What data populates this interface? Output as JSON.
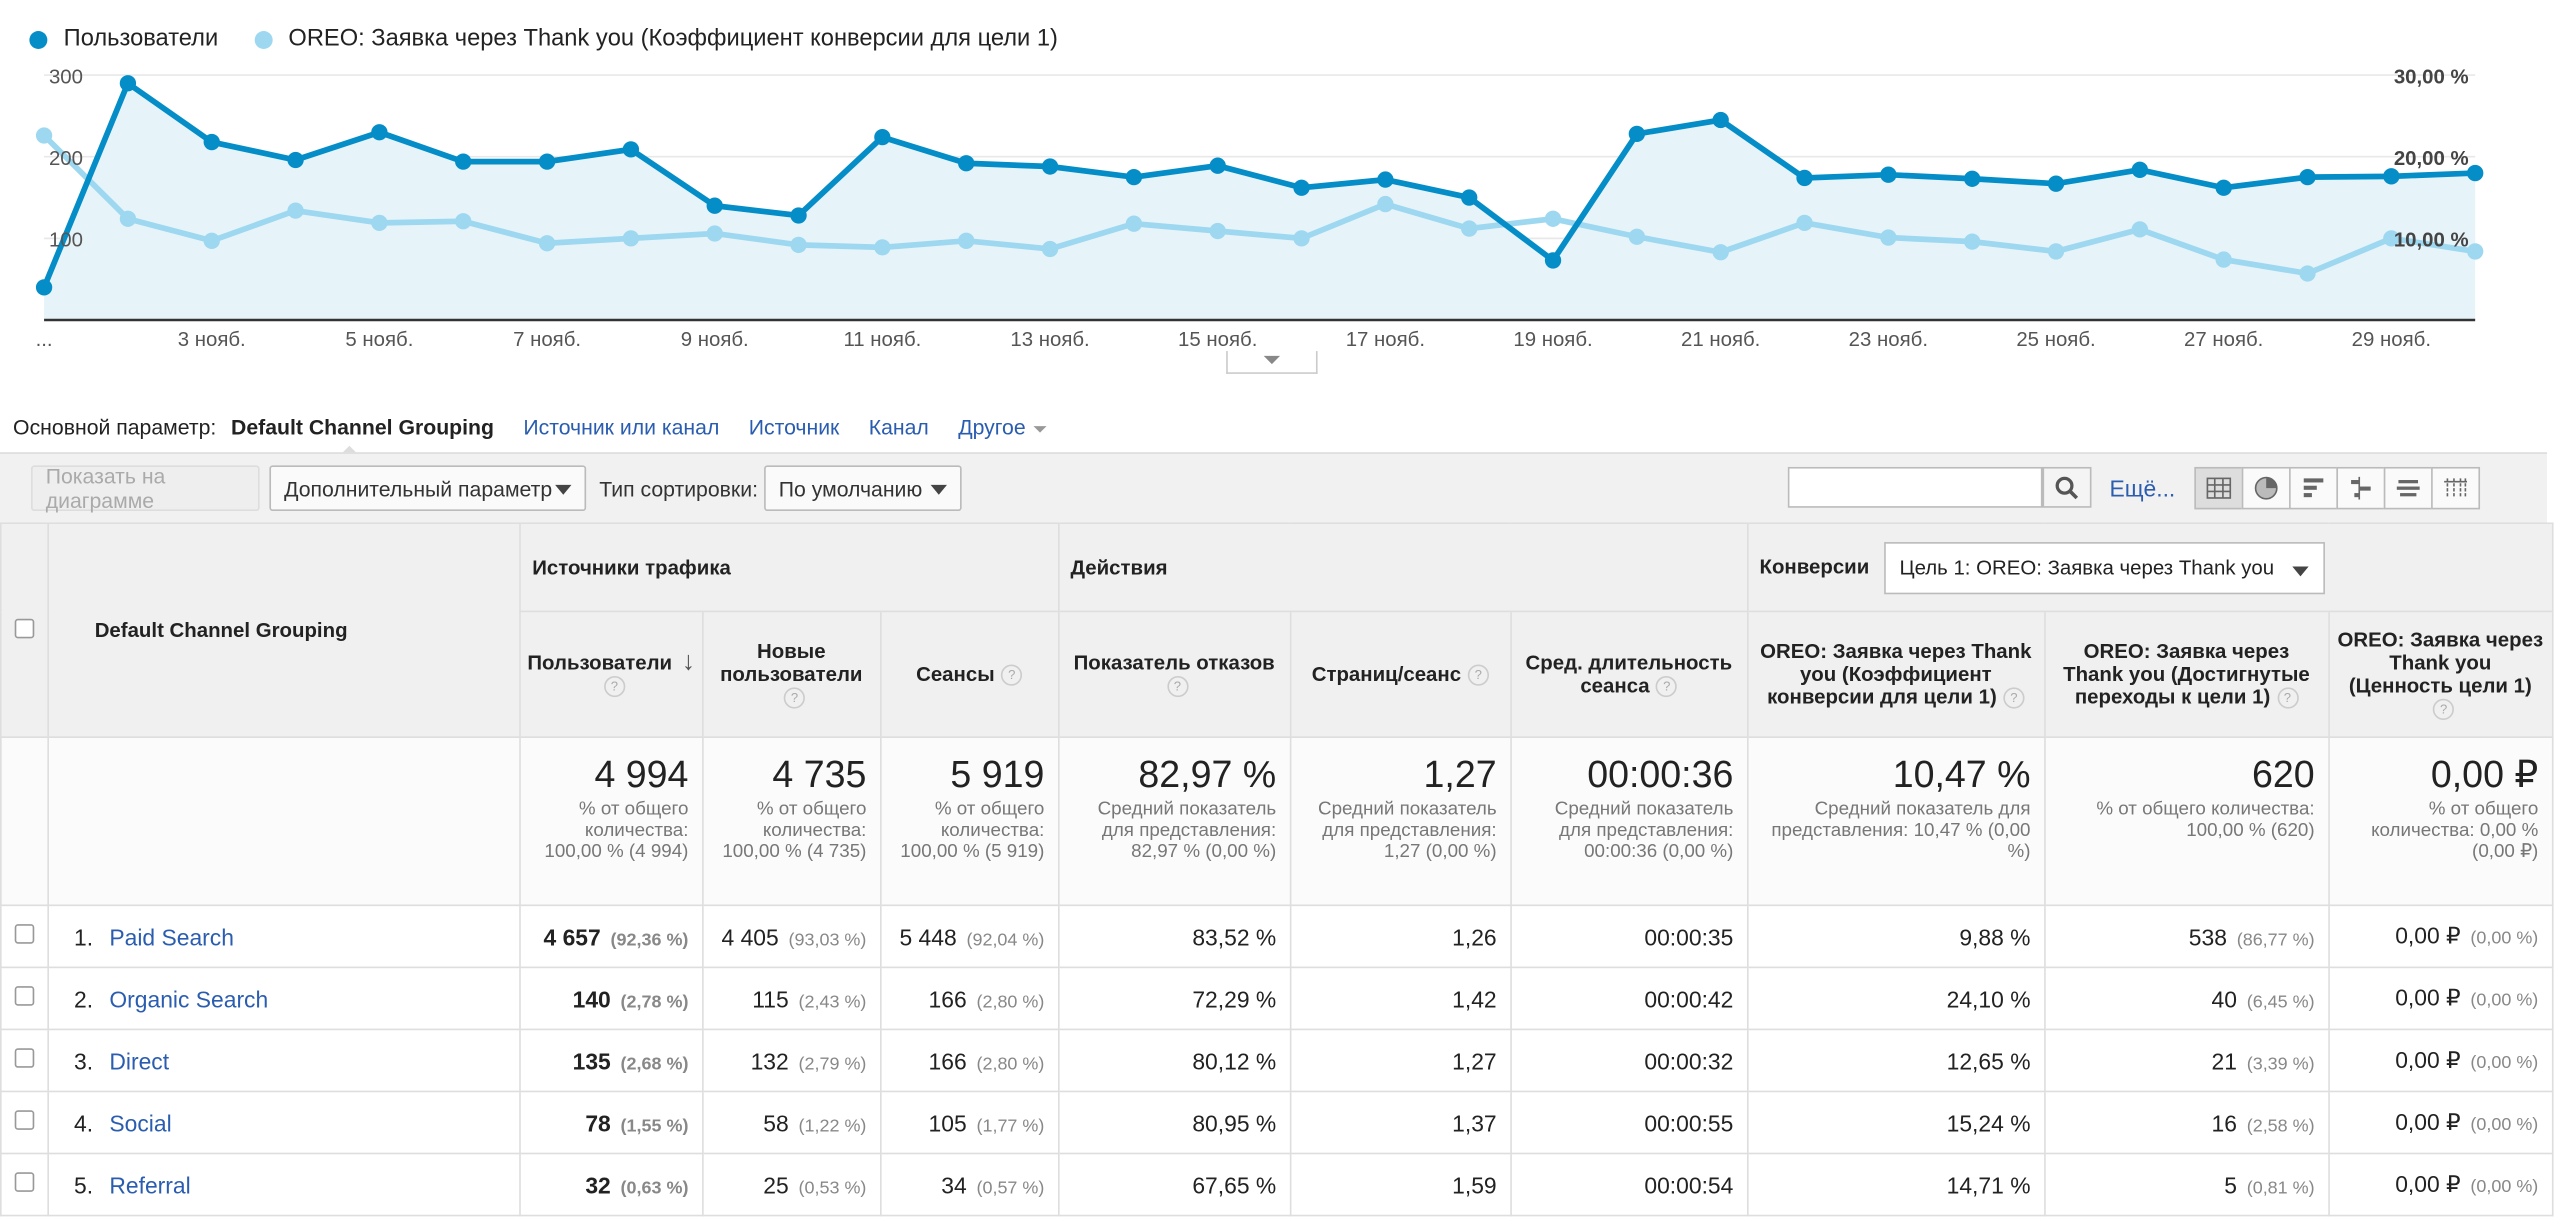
{
  "chart": {
    "legend": [
      {
        "label": "Пользователи",
        "color": "#058dc7"
      },
      {
        "label": "OREO: Заявка через Thank you (Коэффициент конверсии для цели 1)",
        "color": "#9ed8f0"
      }
    ],
    "left_ticks": [
      "300",
      "200",
      "100"
    ],
    "right_ticks": [
      "30,00 %",
      "20,00 %",
      "10,00 %"
    ],
    "x_labels": [
      "...",
      "3 нояб.",
      "5 нояб.",
      "7 нояб.",
      "9 нояб.",
      "11 нояб.",
      "13 нояб.",
      "15 нояб.",
      "17 нояб.",
      "19 нояб.",
      "21 нояб.",
      "23 нояб.",
      "25 нояб.",
      "27 нояб.",
      "29 нояб."
    ]
  },
  "chart_data": {
    "type": "line",
    "x": [
      "1 нояб.",
      "2 нояб.",
      "3 нояб.",
      "4 нояб.",
      "5 нояб.",
      "6 нояб.",
      "7 нояб.",
      "8 нояб.",
      "9 нояб.",
      "10 нояб.",
      "11 нояб.",
      "12 нояб.",
      "13 нояб.",
      "14 нояб.",
      "15 нояб.",
      "16 нояб.",
      "17 нояб.",
      "18 нояб.",
      "19 нояб.",
      "20 нояб.",
      "21 нояб.",
      "22 нояб.",
      "23 нояб.",
      "24 нояб.",
      "25 нояб.",
      "26 нояб.",
      "27 нояб.",
      "28 нояб.",
      "29 нояб.",
      "30 нояб."
    ],
    "series": [
      {
        "name": "Пользователи",
        "axis": "left",
        "values": [
          40,
          290,
          218,
          196,
          230,
          194,
          194,
          209,
          140,
          128,
          224,
          192,
          188,
          175,
          189,
          162,
          172,
          150,
          73,
          228,
          245,
          174,
          178,
          173,
          167,
          184,
          162,
          175,
          176,
          180
        ]
      },
      {
        "name": "OREO: Заявка через Thank you (Коэффициент конверсии для цели 1)",
        "axis": "right",
        "values": [
          22.6,
          12.4,
          9.7,
          13.4,
          11.9,
          12.1,
          9.4,
          10.0,
          10.6,
          9.2,
          8.9,
          9.7,
          8.7,
          11.8,
          10.9,
          10.0,
          14.2,
          11.2,
          12.4,
          10.2,
          8.3,
          11.9,
          10.1,
          9.6,
          8.4,
          11.1,
          7.4,
          5.7,
          10.0,
          8.4
        ]
      }
    ],
    "ylim_left": [
      0,
      300
    ],
    "ylim_right": [
      0,
      30
    ],
    "grid": true
  },
  "dims": {
    "label": "Основной параметр:",
    "active": "Default Channel Grouping",
    "links": [
      "Источник или канал",
      "Источник",
      "Канал",
      "Другое"
    ]
  },
  "toolbar": {
    "plot_btn": "Показать на диаграмме",
    "secondary": "Дополнительный параметр",
    "sort_label": "Тип сортировки:",
    "sort_value": "По умолчанию",
    "more": "Ещё..."
  },
  "table": {
    "first_col": "Default Channel Grouping",
    "groups": [
      "Источники трафика",
      "Действия",
      "Конверсии"
    ],
    "goal_select": "Цель 1: OREO: Заявка через Thank you",
    "columns": [
      "Пользователи",
      "Новые пользователи",
      "Сеансы",
      "Показатель отказов",
      "Страниц/сеанс",
      "Сред. длительность сеанса",
      "OREO: Заявка через Thank you (Коэффициент конверсии для цели 1)",
      "OREO: Заявка через Thank you (Достигнутые переходы к цели 1)",
      "OREO: Заявка через Thank you (Ценность цели 1)"
    ],
    "totals": [
      {
        "big": "4 994",
        "sub": "% от общего количества: 100,00 % (4 994)"
      },
      {
        "big": "4 735",
        "sub": "% от общего количества: 100,00 % (4 735)"
      },
      {
        "big": "5 919",
        "sub": "% от общего количества: 100,00 % (5 919)"
      },
      {
        "big": "82,97 %",
        "sub": "Средний показатель для представления: 82,97 % (0,00 %)"
      },
      {
        "big": "1,27",
        "sub": "Средний показатель для представления: 1,27 (0,00 %)"
      },
      {
        "big": "00:00:36",
        "sub": "Средний показатель для представления: 00:00:36 (0,00 %)"
      },
      {
        "big": "10,47 %",
        "sub": "Средний показатель для представления: 10,47 % (0,00 %)"
      },
      {
        "big": "620",
        "sub": "% от общего количества: 100,00 % (620)"
      },
      {
        "big": "0,00 ₽",
        "sub": "% от общего количества: 0,00 % (0,00 ₽)"
      }
    ],
    "rows": [
      {
        "idx": "1.",
        "name": "Paid Search",
        "users": "4 657",
        "users_pct": "(92,36 %)",
        "new": "4 405",
        "new_pct": "(93,03 %)",
        "sess": "5 448",
        "sess_pct": "(92,04 %)",
        "bounce": "83,52 %",
        "pps": "1,26",
        "dur": "00:00:35",
        "conv": "9,88 %",
        "compl": "538",
        "compl_pct": "(86,77 %)",
        "value": "0,00 ₽",
        "value_pct": "(0,00 %)"
      },
      {
        "idx": "2.",
        "name": "Organic Search",
        "users": "140",
        "users_pct": "(2,78 %)",
        "new": "115",
        "new_pct": "(2,43 %)",
        "sess": "166",
        "sess_pct": "(2,80 %)",
        "bounce": "72,29 %",
        "pps": "1,42",
        "dur": "00:00:42",
        "conv": "24,10 %",
        "compl": "40",
        "compl_pct": "(6,45 %)",
        "value": "0,00 ₽",
        "value_pct": "(0,00 %)"
      },
      {
        "idx": "3.",
        "name": "Direct",
        "users": "135",
        "users_pct": "(2,68 %)",
        "new": "132",
        "new_pct": "(2,79 %)",
        "sess": "166",
        "sess_pct": "(2,80 %)",
        "bounce": "80,12 %",
        "pps": "1,27",
        "dur": "00:00:32",
        "conv": "12,65 %",
        "compl": "21",
        "compl_pct": "(3,39 %)",
        "value": "0,00 ₽",
        "value_pct": "(0,00 %)"
      },
      {
        "idx": "4.",
        "name": "Social",
        "users": "78",
        "users_pct": "(1,55 %)",
        "new": "58",
        "new_pct": "(1,22 %)",
        "sess": "105",
        "sess_pct": "(1,77 %)",
        "bounce": "80,95 %",
        "pps": "1,37",
        "dur": "00:00:55",
        "conv": "15,24 %",
        "compl": "16",
        "compl_pct": "(2,58 %)",
        "value": "0,00 ₽",
        "value_pct": "(0,00 %)"
      },
      {
        "idx": "5.",
        "name": "Referral",
        "users": "32",
        "users_pct": "(0,63 %)",
        "new": "25",
        "new_pct": "(0,53 %)",
        "sess": "34",
        "sess_pct": "(0,57 %)",
        "bounce": "67,65 %",
        "pps": "1,59",
        "dur": "00:00:54",
        "conv": "14,71 %",
        "compl": "5",
        "compl_pct": "(0,81 %)",
        "value": "0,00 ₽",
        "value_pct": "(0,00 %)"
      }
    ]
  }
}
